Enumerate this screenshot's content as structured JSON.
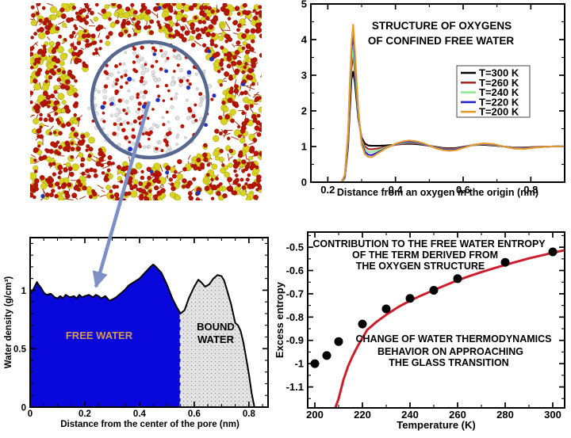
{
  "figure": {
    "type": "scientific-multipanel",
    "background": "#ffffff"
  },
  "panel_molecular": {
    "label": "silica nanopore simulation snapshot",
    "colors": {
      "silicon_atom": "#d8d41e",
      "oxygen_atom": "#b81400",
      "water_atom": "#e2e2e2",
      "ion_blue": "#2233bb",
      "bond": "#aa3311",
      "pore_circle": "#56688f",
      "arrow": "#7b90c5"
    },
    "dot_counts": {
      "matrix_yellow": 380,
      "matrix_red": 660,
      "matrix_bonds": 300,
      "pore_white": 175,
      "pore_red": 105,
      "pore_blue": 12,
      "matrix_blue": 8
    }
  },
  "chart_data": [
    {
      "id": "oxygen-structure",
      "type": "line",
      "title_lines": [
        "STRUCTURE OF OXYGENS",
        "OF CONFINED FREE WATER"
      ],
      "xlabel": "Distance from an oxygen in the origin (nm)",
      "ylabel": "",
      "xlim": [
        0.15,
        0.9
      ],
      "ylim": [
        0,
        5
      ],
      "grid": false,
      "legend_position": "middle-right",
      "xticks": {
        "major": [
          0.2,
          0.4,
          0.6,
          0.8
        ],
        "minor": [
          0.3,
          0.5,
          0.7,
          0.9
        ],
        "labels": [
          "0.2",
          "0.4",
          "0.6",
          "0.8"
        ]
      },
      "yticks": {
        "major": [
          0,
          1,
          2,
          3,
          4,
          5
        ],
        "minor": [
          0.5,
          1.5,
          2.5,
          3.5,
          4.5
        ],
        "labels": [
          "0",
          "1",
          "2",
          "3",
          "4",
          "5"
        ]
      },
      "x": [
        0.15,
        0.2,
        0.24,
        0.25,
        0.26,
        0.265,
        0.27,
        0.275,
        0.28,
        0.29,
        0.3,
        0.31,
        0.32,
        0.33,
        0.35,
        0.37,
        0.4,
        0.42,
        0.44,
        0.46,
        0.48,
        0.5,
        0.52,
        0.54,
        0.56,
        0.58,
        0.6,
        0.63,
        0.66,
        0.69,
        0.72,
        0.75,
        0.78,
        0.82,
        0.86,
        0.9
      ],
      "series": [
        {
          "label": "T=300 K",
          "color": "#000000",
          "y": [
            0,
            0,
            0,
            0.1,
            1.0,
            2.0,
            2.9,
            3.1,
            2.8,
            1.8,
            1.25,
            1.08,
            1.03,
            1.02,
            1.02,
            1.03,
            1.05,
            1.07,
            1.08,
            1.07,
            1.05,
            1.02,
            0.99,
            0.96,
            0.95,
            0.96,
            0.99,
            1.04,
            1.05,
            1.03,
            1.0,
            0.97,
            0.97,
            0.99,
            1.0,
            1.01
          ]
        },
        {
          "label": "T=260 K",
          "color": "#a52a2a",
          "y": [
            0,
            0,
            0,
            0.1,
            1.1,
            2.2,
            3.2,
            3.55,
            3.1,
            1.9,
            1.2,
            1.0,
            0.93,
            0.92,
            0.95,
            0.99,
            1.05,
            1.08,
            1.1,
            1.09,
            1.06,
            1.02,
            0.98,
            0.95,
            0.93,
            0.95,
            0.98,
            1.04,
            1.06,
            1.04,
            1.0,
            0.97,
            0.96,
            0.99,
            1.0,
            1.01
          ]
        },
        {
          "label": "T=240 K",
          "color": "#8ee88e",
          "y": [
            0,
            0,
            0,
            0.1,
            1.2,
            2.4,
            3.4,
            3.75,
            3.2,
            1.9,
            1.15,
            0.92,
            0.85,
            0.84,
            0.9,
            0.97,
            1.06,
            1.1,
            1.12,
            1.11,
            1.07,
            1.02,
            0.97,
            0.93,
            0.91,
            0.93,
            0.97,
            1.04,
            1.07,
            1.05,
            1.0,
            0.96,
            0.95,
            0.98,
            1.0,
            1.01
          ]
        },
        {
          "label": "T=220 K",
          "color": "#2424cc",
          "y": [
            0,
            0,
            0,
            0.15,
            1.3,
            2.6,
            3.7,
            4.15,
            3.5,
            2.0,
            1.1,
            0.85,
            0.77,
            0.76,
            0.85,
            0.95,
            1.07,
            1.12,
            1.14,
            1.13,
            1.08,
            1.02,
            0.96,
            0.92,
            0.9,
            0.92,
            0.97,
            1.05,
            1.08,
            1.06,
            1.0,
            0.95,
            0.94,
            0.98,
            1.0,
            1.01
          ]
        },
        {
          "label": "T=200 K",
          "color": "#e89c2e",
          "y": [
            0,
            0,
            0,
            0.2,
            1.4,
            2.8,
            3.9,
            4.42,
            3.7,
            2.1,
            1.05,
            0.78,
            0.71,
            0.7,
            0.82,
            0.94,
            1.08,
            1.14,
            1.17,
            1.15,
            1.1,
            1.03,
            0.95,
            0.9,
            0.88,
            0.9,
            0.96,
            1.05,
            1.09,
            1.07,
            1.0,
            0.94,
            0.93,
            0.98,
            1.0,
            1.01
          ]
        }
      ]
    },
    {
      "id": "water-density-profile",
      "type": "area",
      "xlabel": "Distance from the center of the pore (nm)",
      "ylabel": "Water density (g/cm³)",
      "xlim": [
        0,
        0.87
      ],
      "ylim": [
        0,
        1.45
      ],
      "grid": false,
      "free_water_boundary": 0.55,
      "regions": [
        {
          "label": "FREE WATER",
          "fill": "#0808dd",
          "label_color": "#d7975a",
          "range_nm": [
            0,
            0.55
          ]
        },
        {
          "label": "BOUND WATER",
          "label_lines": [
            "BOUND",
            "WATER"
          ],
          "fill": "stipple-gray",
          "label_color": "#000000",
          "range_nm": [
            0.55,
            0.82
          ]
        }
      ],
      "xticks": {
        "major": [
          0,
          0.2,
          0.4,
          0.6,
          0.8
        ],
        "minor": [
          0.05,
          0.1,
          0.15,
          0.25,
          0.3,
          0.35,
          0.45,
          0.5,
          0.55,
          0.65,
          0.7,
          0.75,
          0.85
        ],
        "labels": [
          "0",
          "0.2",
          "0.4",
          "0.6",
          "0.8"
        ]
      },
      "yticks": {
        "major": [
          0,
          0.5,
          1
        ],
        "minor": [
          0.1,
          0.2,
          0.3,
          0.4,
          0.6,
          0.7,
          0.8,
          0.9,
          1.1,
          1.2,
          1.3,
          1.4
        ],
        "labels": [
          "0",
          "0.5",
          "1"
        ]
      },
      "x": [
        0,
        0.01,
        0.025,
        0.03,
        0.04,
        0.05,
        0.06,
        0.075,
        0.09,
        0.1,
        0.11,
        0.12,
        0.13,
        0.145,
        0.16,
        0.17,
        0.18,
        0.19,
        0.2,
        0.215,
        0.23,
        0.24,
        0.25,
        0.26,
        0.275,
        0.29,
        0.3,
        0.315,
        0.33,
        0.345,
        0.36,
        0.38,
        0.4,
        0.42,
        0.44,
        0.45,
        0.46,
        0.48,
        0.5,
        0.52,
        0.535,
        0.55,
        0.565,
        0.58,
        0.6,
        0.615,
        0.625,
        0.64,
        0.655,
        0.67,
        0.685,
        0.7,
        0.71,
        0.72,
        0.735,
        0.75,
        0.76,
        0.77,
        0.78,
        0.79,
        0.8,
        0.81,
        0.82
      ],
      "y": [
        0.97,
        1.0,
        1.07,
        1.05,
        1.02,
        0.98,
        0.96,
        0.97,
        0.94,
        0.93,
        0.95,
        0.93,
        0.96,
        0.94,
        0.95,
        0.93,
        0.96,
        0.94,
        0.95,
        0.96,
        0.94,
        0.96,
        0.95,
        0.93,
        0.95,
        0.91,
        0.92,
        0.94,
        0.97,
        1.0,
        1.04,
        1.07,
        1.1,
        1.15,
        1.2,
        1.22,
        1.2,
        1.15,
        1.05,
        0.93,
        0.86,
        0.8,
        0.83,
        0.93,
        1.03,
        1.09,
        1.07,
        1.03,
        1.05,
        1.1,
        1.13,
        1.12,
        1.08,
        1.0,
        0.88,
        0.72,
        0.7,
        0.65,
        0.55,
        0.42,
        0.28,
        0.12,
        0.0
      ]
    },
    {
      "id": "excess-entropy",
      "type": "scatter",
      "title_lines": [
        "CONTRIBUTION TO THE FREE WATER ENTROPY",
        "OF THE TERM DERIVED FROM",
        "THE OXYGEN STRUCTURE"
      ],
      "annotation_lines": [
        "CHANGE OF WATER THERMODYNAMICS",
        "BEHAVIOR ON APPROACHING",
        "THE GLASS TRANSITION"
      ],
      "xlabel": "Temperature  (K)",
      "ylabel": "Excess entropy",
      "xlim": [
        197,
        305
      ],
      "ylim": [
        -1.19,
        -0.435
      ],
      "grid": false,
      "xticks": {
        "major": [
          200,
          220,
          240,
          260,
          280,
          300
        ],
        "minor": [
          210,
          230,
          250,
          270,
          290
        ],
        "labels": [
          "200",
          "220",
          "240",
          "260",
          "280",
          "300"
        ]
      },
      "yticks": {
        "major": [
          -0.5,
          -0.6,
          -0.7,
          -0.8,
          -0.9,
          -1,
          -1.1
        ],
        "minor": [
          -0.45,
          -0.55,
          -0.65,
          -0.75,
          -0.85,
          -0.95,
          -1.05,
          -1.15
        ],
        "labels": [
          "-0.5",
          "-0.6",
          "-0.7",
          "-0.8",
          "-0.9",
          "-1",
          "-1.1"
        ]
      },
      "point_color": "#000000",
      "point_radius": 5.5,
      "points": [
        [
          200,
          -1.0
        ],
        [
          205,
          -0.965
        ],
        [
          210,
          -0.905
        ],
        [
          220,
          -0.83
        ],
        [
          230,
          -0.765
        ],
        [
          240,
          -0.72
        ],
        [
          250,
          -0.685
        ],
        [
          260,
          -0.635
        ],
        [
          280,
          -0.565
        ],
        [
          300,
          -0.52
        ]
      ],
      "fit_color": "#cc1f2e",
      "fit": [
        [
          208.6,
          -1.19
        ],
        [
          210,
          -1.15
        ],
        [
          212,
          -1.07
        ],
        [
          214,
          -1.01
        ],
        [
          216,
          -0.965
        ],
        [
          218,
          -0.925
        ],
        [
          220,
          -0.89
        ],
        [
          222,
          -0.855
        ],
        [
          226,
          -0.82
        ],
        [
          230,
          -0.79
        ],
        [
          235,
          -0.757
        ],
        [
          240,
          -0.73
        ],
        [
          245,
          -0.706
        ],
        [
          250,
          -0.684
        ],
        [
          255,
          -0.663
        ],
        [
          260,
          -0.642
        ],
        [
          265,
          -0.624
        ],
        [
          270,
          -0.607
        ],
        [
          275,
          -0.591
        ],
        [
          280,
          -0.576
        ],
        [
          285,
          -0.562
        ],
        [
          290,
          -0.548
        ],
        [
          295,
          -0.536
        ],
        [
          300,
          -0.524
        ],
        [
          305,
          -0.513
        ]
      ]
    }
  ]
}
